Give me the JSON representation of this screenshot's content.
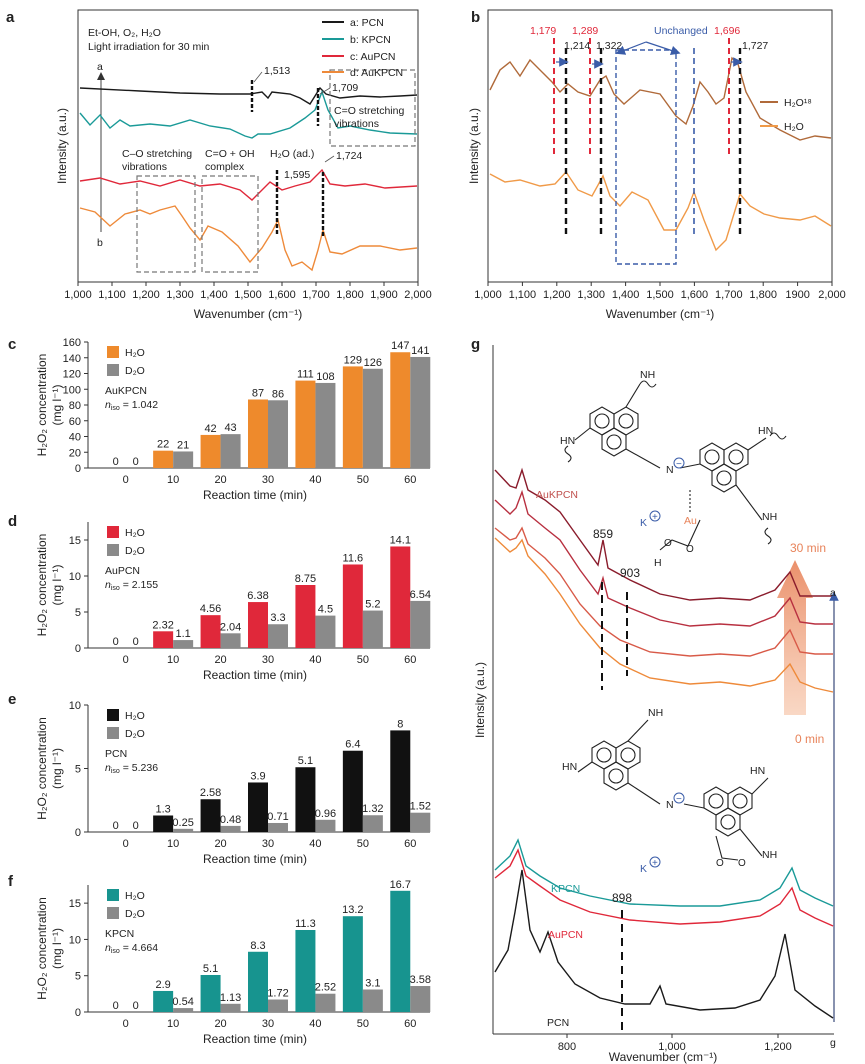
{
  "colors": {
    "pcn": "#1a1a1a",
    "kpcn": "#1a9a98",
    "aupcn": "#e0283a",
    "aukpcn": "#ee8a3a",
    "h2o18": "#b06a3a",
    "h2o": "#f09a48",
    "bar_h2o_c": "#ee8a2c",
    "bar_h2o_d": "#e0283a",
    "bar_h2o_e": "#111111",
    "bar_h2o_f": "#17948f",
    "bar_d2o": "#8a8a8a",
    "red_dash": "#e0283a",
    "blue": "#3a5ca8",
    "g_dark1": "#8a1c2c",
    "g_dark2": "#b83040",
    "g_mid": "#d85a48"
  },
  "chart_data": [
    {
      "panel": "a",
      "type": "line",
      "xlabel": "Wavenumber (cm⁻¹)",
      "ylabel": "Intensity (a.u.)",
      "xlim": [
        1000,
        2000
      ],
      "xticks": [
        "1,000",
        "1,100",
        "1,200",
        "1,300",
        "1,400",
        "1,500",
        "1,600",
        "1,700",
        "1,800",
        "1,900",
        "2,000"
      ],
      "conditions": [
        "Et-OH, O₂, H₂O",
        "Light irradiation for 30 min"
      ],
      "arrow_top": "a",
      "arrow_bottom": "b",
      "legend": [
        "a: PCN",
        "b: KPCN",
        "c: AuPCN",
        "d: AuKPCN"
      ],
      "annotations": {
        "p1513": "1,513",
        "p1709": "1,709",
        "p1595": "1,595",
        "p1724": "1,724",
        "co_stretch_right": [
          "C=O stretching",
          "vibrations"
        ],
        "co_single": [
          "C–O stretching",
          "vibrations"
        ],
        "co_oh": [
          "C=O + OH",
          "complex"
        ],
        "h2o_ads": "H₂O (ad.)"
      }
    },
    {
      "panel": "b",
      "type": "line",
      "xlabel": "Wavenumber (cm⁻¹)",
      "ylabel": "Intensity (a.u.)",
      "xlim": [
        1000,
        2000
      ],
      "xticks": [
        "1,000",
        "1,100",
        "1,200",
        "1,300",
        "1,400",
        "1,500",
        "1,600",
        "1,700",
        "1,800",
        "1900",
        "2,000"
      ],
      "legend": [
        "H₂O¹⁸",
        "H₂O"
      ],
      "peaks_red": [
        "1,179",
        "1,289",
        "1,696"
      ],
      "peaks_black": [
        "1,214",
        "1,322",
        "1,727"
      ],
      "unchanged": "Unchanged"
    },
    {
      "panel": "c",
      "type": "bar",
      "sample": "AuKPCN",
      "n_label": "n",
      "n_sub": "iso",
      "n_value": " = 1.042",
      "categories": [
        "0",
        "10",
        "20",
        "30",
        "40",
        "50",
        "60"
      ],
      "series": [
        {
          "name": "H₂O",
          "values": [
            0,
            22,
            42,
            87,
            111,
            129,
            147
          ],
          "labels": [
            "0",
            "22",
            "42",
            "87",
            "111",
            "129",
            "147"
          ]
        },
        {
          "name": "D₂O",
          "values": [
            0,
            21,
            43,
            86,
            108,
            126,
            141
          ],
          "labels": [
            "0",
            "21",
            "43",
            "86",
            "108",
            "126",
            "141"
          ]
        }
      ],
      "ylim": [
        0,
        160
      ],
      "yticks": [
        "0",
        "20",
        "40",
        "60",
        "80",
        "100",
        "120",
        "140",
        "160"
      ],
      "xlabel": "Reaction time (min)",
      "ylabel": [
        "H₂O₂ concentration",
        "(mg l⁻¹)"
      ]
    },
    {
      "panel": "d",
      "type": "bar",
      "sample": "AuPCN",
      "n_label": "n",
      "n_sub": "iso",
      "n_value": " = 2.155",
      "categories": [
        "0",
        "10",
        "20",
        "30",
        "40",
        "50",
        "60"
      ],
      "series": [
        {
          "name": "H₂O",
          "values": [
            0,
            2.32,
            4.56,
            6.38,
            8.75,
            11.6,
            14.1
          ],
          "labels": [
            "0",
            "2.32",
            "4.56",
            "6.38",
            "8.75",
            "11.6",
            "14.1"
          ]
        },
        {
          "name": "D₂O",
          "values": [
            0,
            1.1,
            2.04,
            3.3,
            4.5,
            5.2,
            6.54
          ],
          "labels": [
            "0",
            "1.1",
            "2.04",
            "3.3",
            "4.5",
            "5.2",
            "6.54"
          ]
        }
      ],
      "ylim": [
        0,
        17.5
      ],
      "yticks": [
        "0",
        "5",
        "10",
        "15"
      ],
      "xlabel": "Reaction time (min)",
      "ylabel": [
        "H₂O₂ concentration",
        "(mg l⁻¹)"
      ]
    },
    {
      "panel": "e",
      "type": "bar",
      "sample": "PCN",
      "n_label": "n",
      "n_sub": "iso",
      "n_value": " = 5.236",
      "categories": [
        "0",
        "10",
        "20",
        "30",
        "40",
        "50",
        "60"
      ],
      "series": [
        {
          "name": "H₂O",
          "values": [
            0,
            1.3,
            2.58,
            3.9,
            5.1,
            6.4,
            8
          ],
          "labels": [
            "0",
            "1.3",
            "2.58",
            "3.9",
            "5.1",
            "6.4",
            "8"
          ]
        },
        {
          "name": "D₂O",
          "values": [
            0,
            0.25,
            0.48,
            0.71,
            0.96,
            1.32,
            1.52
          ],
          "labels": [
            "0",
            "0.25",
            "0.48",
            "0.71",
            "0.96",
            "1.32",
            "1.52"
          ]
        }
      ],
      "ylim": [
        0,
        10
      ],
      "yticks": [
        "0",
        "5",
        "10"
      ],
      "xlabel": "Reaction time (min)",
      "ylabel": [
        "H₂O₂ concentration",
        "(mg l⁻¹)"
      ]
    },
    {
      "panel": "f",
      "type": "bar",
      "sample": "KPCN",
      "n_label": "n",
      "n_sub": "iso",
      "n_value": " = 4.664",
      "categories": [
        "0",
        "10",
        "20",
        "30",
        "40",
        "50",
        "60"
      ],
      "series": [
        {
          "name": "H₂O",
          "values": [
            0,
            2.9,
            5.1,
            8.3,
            11.3,
            13.2,
            16.7
          ],
          "labels": [
            "0",
            "2.9",
            "5.1",
            "8.3",
            "11.3",
            "13.2",
            "16.7"
          ]
        },
        {
          "name": "D₂O",
          "values": [
            0,
            0.54,
            1.13,
            1.72,
            2.52,
            3.1,
            3.58
          ],
          "labels": [
            "0",
            "0.54",
            "1.13",
            "1.72",
            "2.52",
            "3.1",
            "3.58"
          ]
        }
      ],
      "ylim": [
        0,
        17.5
      ],
      "yticks": [
        "0",
        "5",
        "10",
        "15"
      ],
      "xlabel": "Reaction time (min)",
      "ylabel": [
        "H₂O₂ concentration",
        "(mg l⁻¹)"
      ]
    },
    {
      "panel": "g",
      "type": "line",
      "xlabel": "Wavenumber (cm⁻¹)",
      "ylabel": "Intensity (a.u.)",
      "xlim": [
        650,
        1300
      ],
      "xticks": [
        "800",
        "1,000",
        "1,200"
      ],
      "labels": {
        "aukpcn": "AuKPCN",
        "kpcn": "KPCN",
        "aupcn": "AuPCN",
        "pcn": "PCN"
      },
      "peaks": [
        "859",
        "903",
        "898"
      ],
      "time_top": "30 min",
      "time_bottom": "0 min",
      "arrow_top": "a",
      "arrow_bottom": "g",
      "struct": {
        "N": "N",
        "NH": "NH",
        "HN": "HN",
        "K": "K",
        "Au": "Au",
        "H": "H",
        "O": "O",
        "minus": "−",
        "plus": "+"
      }
    }
  ]
}
